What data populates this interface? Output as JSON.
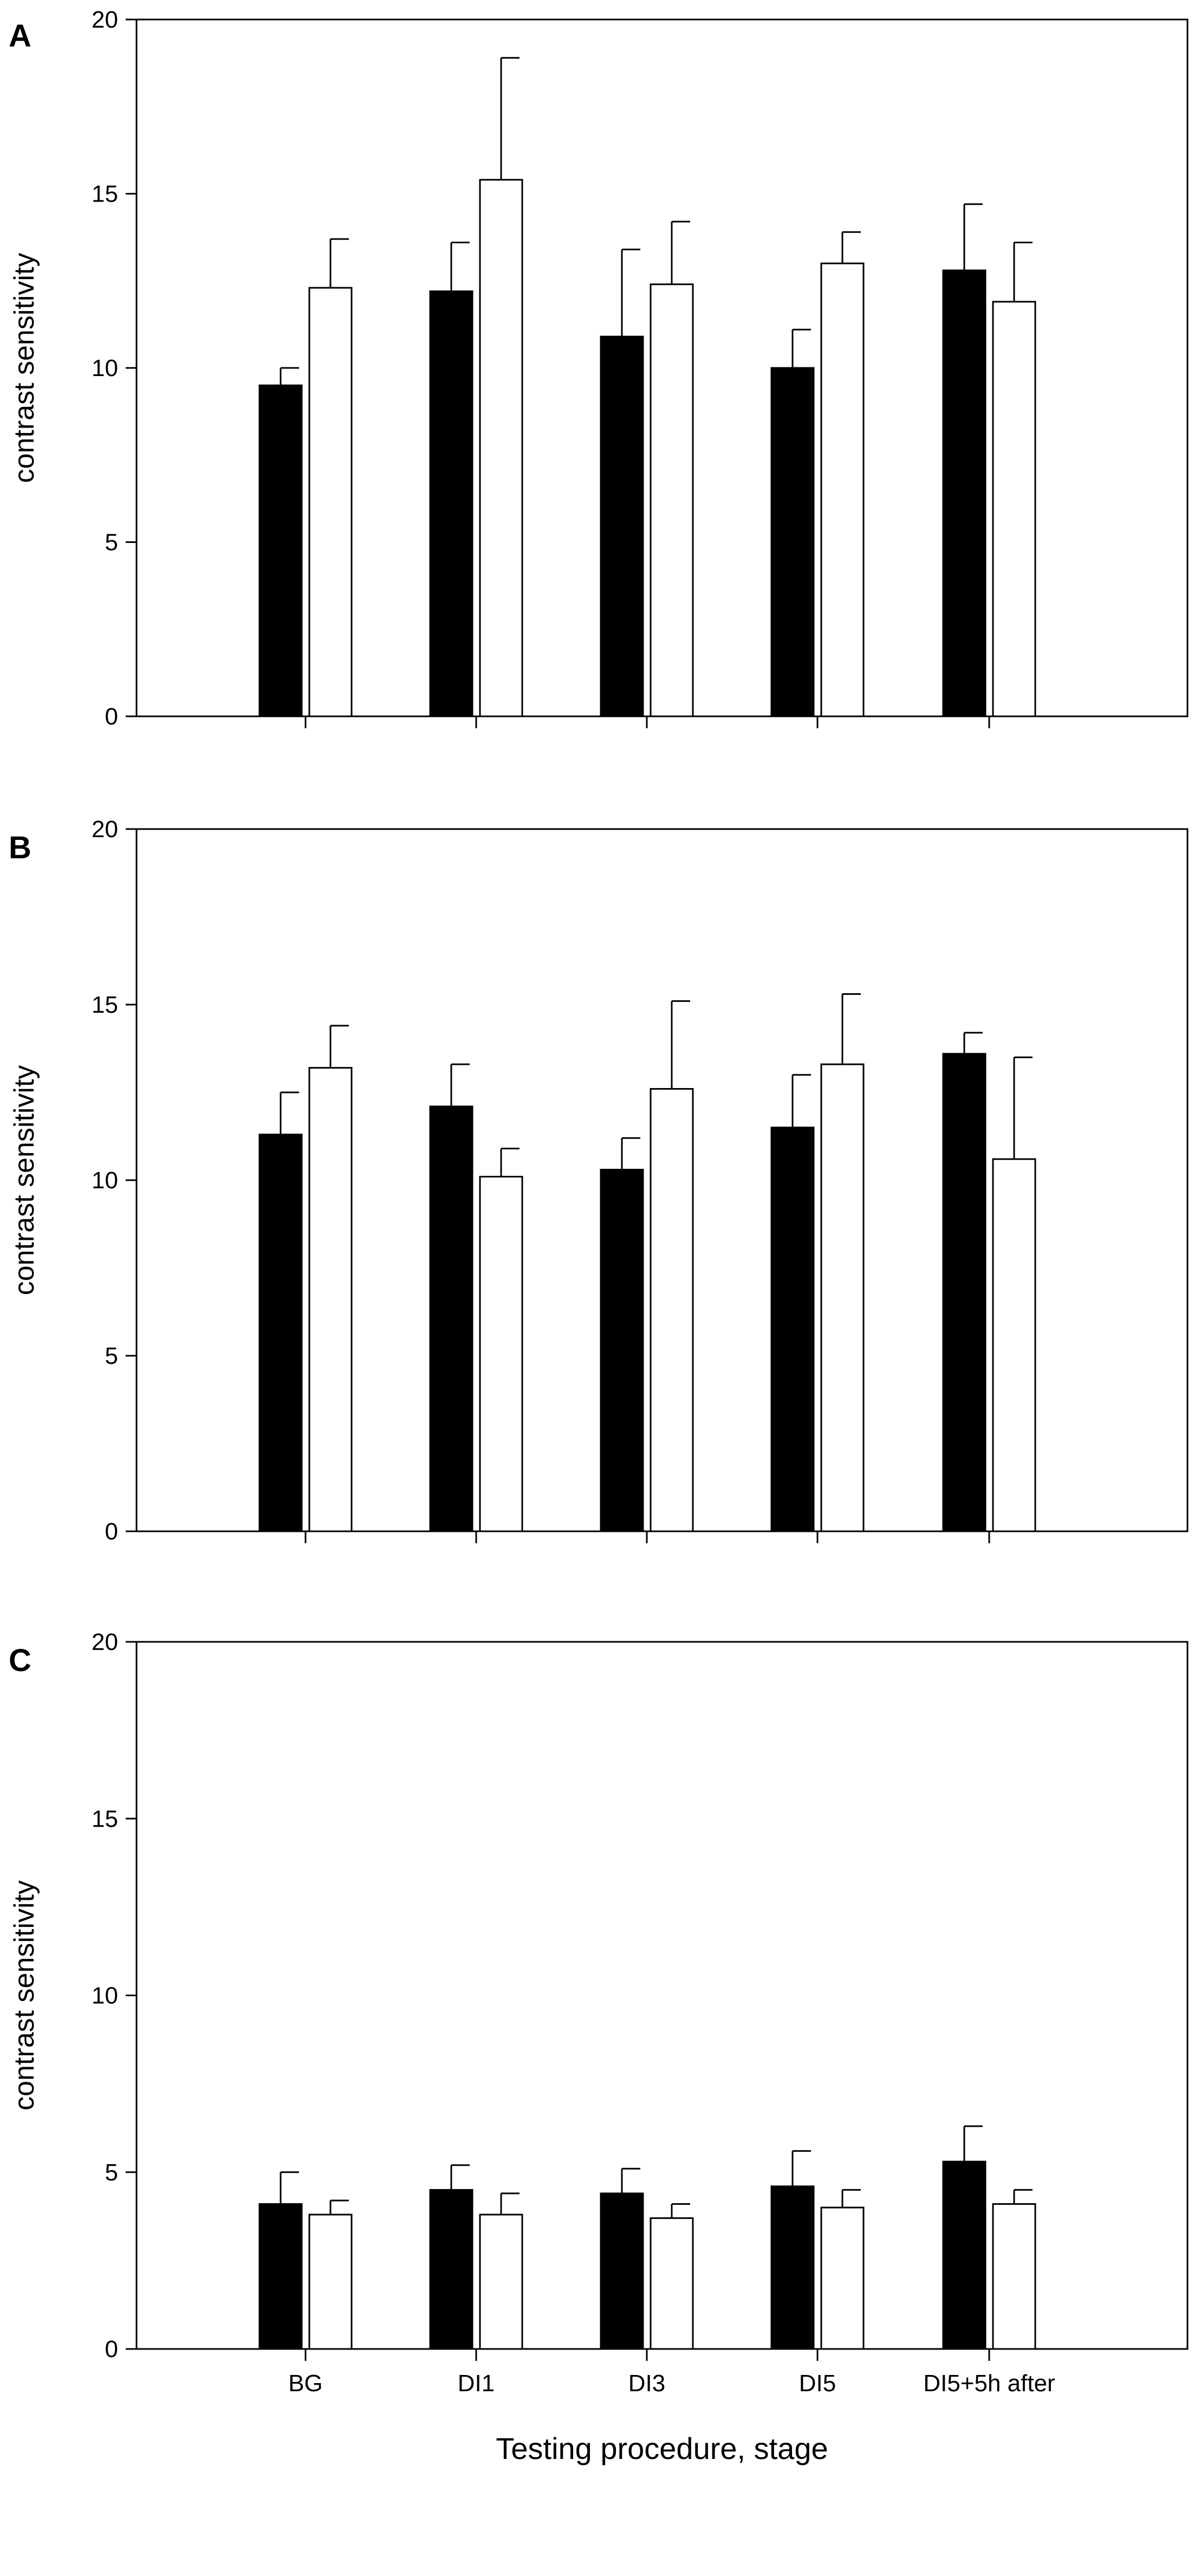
{
  "figure": {
    "x_axis_title": "Testing procedure, stage"
  },
  "chart_data": [
    {
      "panel": "A",
      "type": "bar",
      "ylabel": "contrast sensitivity",
      "ylim": [
        0,
        20
      ],
      "yticks": [
        0,
        5,
        10,
        15,
        20
      ],
      "categories": [
        "BG",
        "DI1",
        "DI3",
        "DI5",
        "DI5+5h after"
      ],
      "show_category_labels": false,
      "series": [
        {
          "color": "#000000",
          "values": [
            9.5,
            12.2,
            10.9,
            10.0,
            12.8
          ],
          "errors": [
            0.5,
            1.4,
            2.5,
            1.1,
            1.9
          ]
        },
        {
          "color": "#ffffff",
          "values": [
            12.3,
            15.4,
            12.4,
            13.0,
            11.9
          ],
          "errors": [
            1.4,
            3.5,
            1.8,
            0.9,
            1.7
          ]
        }
      ]
    },
    {
      "panel": "B",
      "type": "bar",
      "ylabel": "contrast sensitivity",
      "ylim": [
        0,
        20
      ],
      "yticks": [
        0,
        5,
        10,
        15,
        20
      ],
      "categories": [
        "BG",
        "DI1",
        "DI3",
        "DI5",
        "DI5+5h after"
      ],
      "show_category_labels": false,
      "series": [
        {
          "color": "#000000",
          "values": [
            11.3,
            12.1,
            10.3,
            11.5,
            13.6
          ],
          "errors": [
            1.2,
            1.2,
            0.9,
            1.5,
            0.6
          ]
        },
        {
          "color": "#ffffff",
          "values": [
            13.2,
            10.1,
            12.6,
            13.3,
            10.6
          ],
          "errors": [
            1.2,
            0.8,
            2.5,
            2.0,
            2.9
          ]
        }
      ]
    },
    {
      "panel": "C",
      "type": "bar",
      "ylabel": "contrast sensitivity",
      "ylim": [
        0,
        20
      ],
      "yticks": [
        0,
        5,
        10,
        15,
        20
      ],
      "categories": [
        "BG",
        "DI1",
        "DI3",
        "DI5",
        "DI5+5h after"
      ],
      "show_category_labels": true,
      "series": [
        {
          "color": "#000000",
          "values": [
            4.1,
            4.5,
            4.4,
            4.6,
            5.3
          ],
          "errors": [
            0.9,
            0.7,
            0.7,
            1.0,
            1.0
          ]
        },
        {
          "color": "#ffffff",
          "values": [
            3.8,
            3.8,
            3.7,
            4.0,
            4.1
          ],
          "errors": [
            0.4,
            0.6,
            0.4,
            0.5,
            0.4
          ]
        }
      ]
    }
  ]
}
